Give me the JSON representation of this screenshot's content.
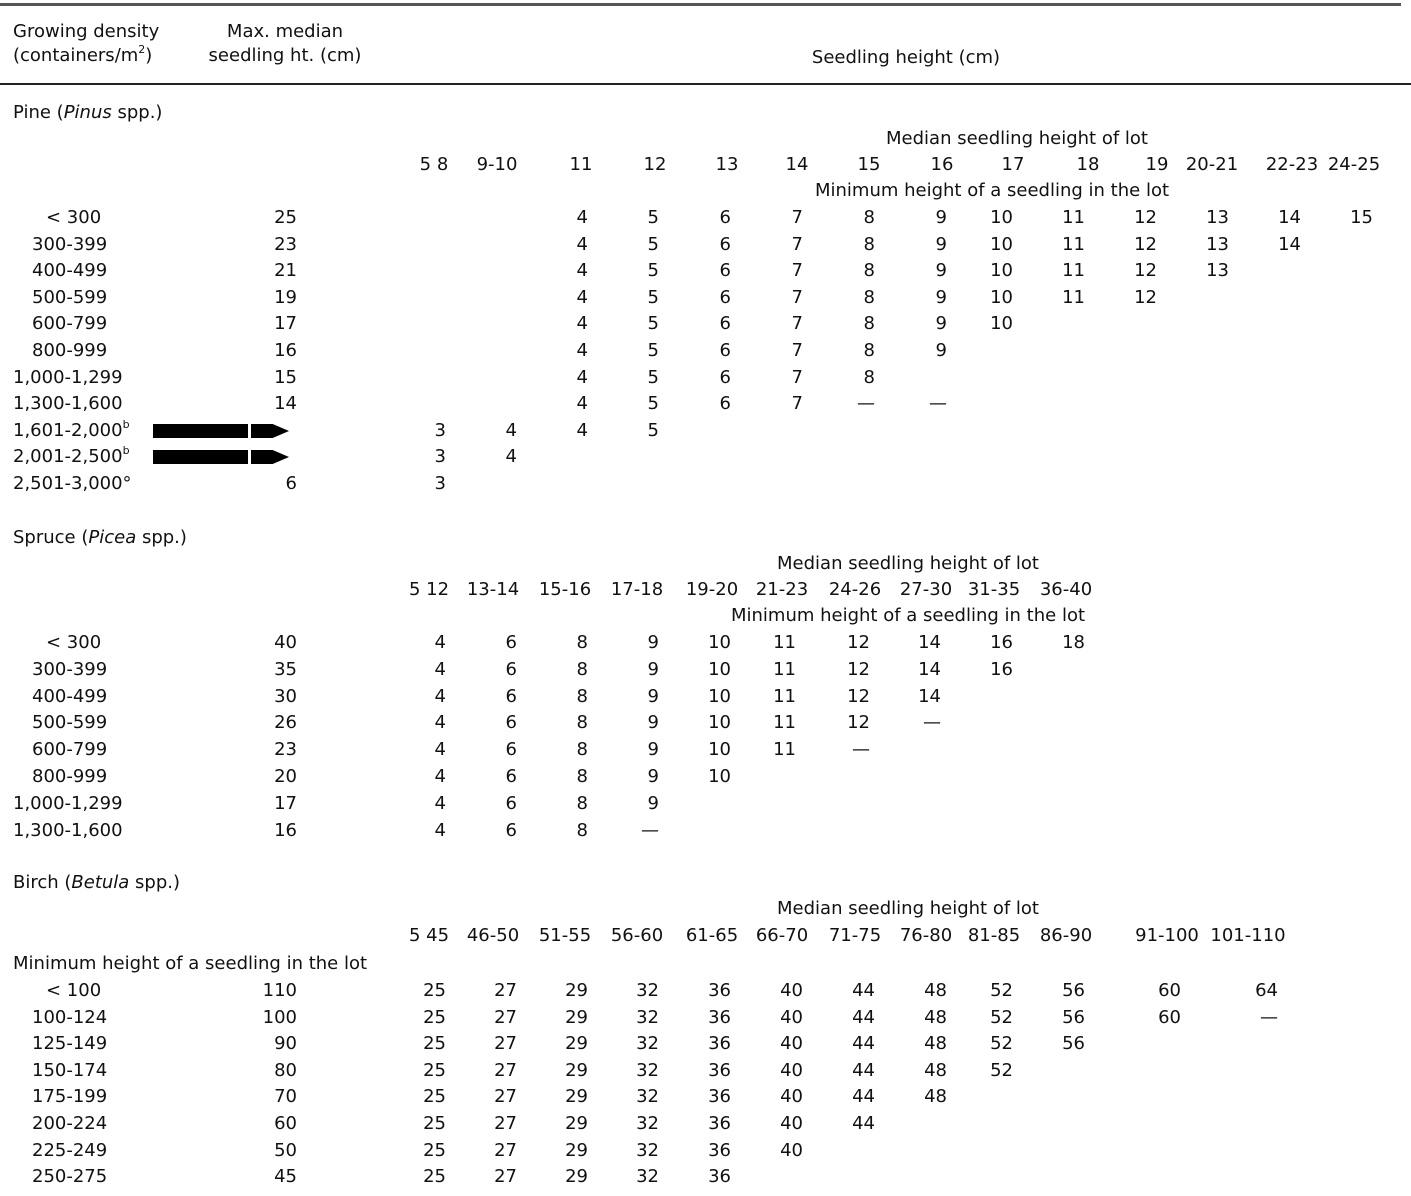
{
  "header": {
    "col1_line1": "Growing density",
    "col1_line2_pre": "(containers/m",
    "col1_line2_sup": "2",
    "col1_line2_post": ")",
    "col2_line1": "Max. median",
    "col2_line2": "seedling ht. (cm)",
    "col3": "Seedling height (cm)"
  },
  "pine": {
    "title_pre": "Pine (",
    "title_genus": "Pinus",
    "title_post": " spp.)",
    "median_label": "Median seedling height of lot",
    "min_label": "Minimum height of a seedling in the lot",
    "cols": [
      "5 8",
      "9-10",
      "11",
      "12",
      "13",
      "14",
      "15",
      "16",
      "17",
      "18",
      "19",
      "20-21",
      "22-23",
      "24-25"
    ],
    "rows": [
      {
        "density": "< 300",
        "max": "25",
        "vals": [
          "",
          "",
          "4",
          "5",
          "6",
          "7",
          "8",
          "9",
          "10",
          "11",
          "12",
          "13",
          "14",
          "15"
        ]
      },
      {
        "density": "300-399",
        "max": "23",
        "vals": [
          "",
          "",
          "4",
          "5",
          "6",
          "7",
          "8",
          "9",
          "10",
          "11",
          "12",
          "13",
          "14",
          ""
        ]
      },
      {
        "density": "400-499",
        "max": "21",
        "vals": [
          "",
          "",
          "4",
          "5",
          "6",
          "7",
          "8",
          "9",
          "10",
          "11",
          "12",
          "13",
          "",
          ""
        ]
      },
      {
        "density": "500-599",
        "max": "19",
        "vals": [
          "",
          "",
          "4",
          "5",
          "6",
          "7",
          "8",
          "9",
          "10",
          "11",
          "12",
          "",
          "",
          ""
        ]
      },
      {
        "density": "600-799",
        "max": "17",
        "vals": [
          "",
          "",
          "4",
          "5",
          "6",
          "7",
          "8",
          "9",
          "10",
          "",
          "",
          "",
          "",
          ""
        ]
      },
      {
        "density": "800-999",
        "max": "16",
        "vals": [
          "",
          "",
          "4",
          "5",
          "6",
          "7",
          "8",
          "9",
          "",
          "",
          "",
          "",
          "",
          ""
        ]
      },
      {
        "density": "1,000-1,299",
        "max": "15",
        "vals": [
          "",
          "",
          "4",
          "5",
          "6",
          "7",
          "8",
          "",
          "",
          "",
          "",
          "",
          "",
          ""
        ]
      },
      {
        "density": "1,300-1,600",
        "max": "14",
        "vals": [
          "",
          "",
          "4",
          "5",
          "6",
          "7",
          "—",
          "—",
          "",
          "",
          "",
          "",
          "",
          ""
        ]
      },
      {
        "density": "1,601-2,000",
        "sup": "b",
        "max": "",
        "vals": [
          "3",
          "4",
          "4",
          "5",
          "",
          "",
          "",
          "",
          "",
          "",
          "",
          "",
          "",
          ""
        ]
      },
      {
        "density": "2,001-2,500",
        "sup": "b",
        "max": "",
        "vals": [
          "3",
          "4",
          "",
          "",
          "",
          "",
          "",
          "",
          "",
          "",
          "",
          "",
          "",
          ""
        ]
      },
      {
        "density": "2,501-3,000°",
        "max": "6",
        "vals": [
          "3",
          "",
          "",
          "",
          "",
          "",
          "",
          "",
          "",
          "",
          "",
          "",
          "",
          ""
        ]
      }
    ]
  },
  "spruce": {
    "title_pre": "Spruce (",
    "title_genus": "Picea",
    "title_post": " spp.)",
    "median_label": "Median seedling height of lot",
    "min_label": "Minimum height of a seedling in the lot",
    "cols": [
      "5 12",
      "13-14",
      "15-16",
      "17-18",
      "19-20",
      "21-23",
      "24-26",
      "27-30",
      "31-35",
      "36-40"
    ],
    "rows": [
      {
        "density": "< 300",
        "max": "40",
        "vals": [
          "4",
          "6",
          "8",
          "9",
          "10",
          "11",
          "12",
          "14",
          "16",
          "18"
        ]
      },
      {
        "density": "300-399",
        "max": "35",
        "vals": [
          "4",
          "6",
          "8",
          "9",
          "10",
          "11",
          "12",
          "14",
          "16",
          ""
        ]
      },
      {
        "density": "400-499",
        "max": "30",
        "vals": [
          "4",
          "6",
          "8",
          "9",
          "10",
          "11",
          "12",
          "14",
          "",
          ""
        ]
      },
      {
        "density": "500-599",
        "max": "26",
        "vals": [
          "4",
          "6",
          "8",
          "9",
          "10",
          "11",
          "12",
          "—",
          "",
          ""
        ]
      },
      {
        "density": "600-799",
        "max": "23",
        "vals": [
          "4",
          "6",
          "8",
          "9",
          "10",
          "11",
          "—",
          "",
          "",
          ""
        ]
      },
      {
        "density": "800-999",
        "max": "20",
        "vals": [
          "4",
          "6",
          "8",
          "9",
          "10",
          "",
          "",
          "",
          "",
          ""
        ]
      },
      {
        "density": "1,000-1,299",
        "max": "17",
        "vals": [
          "4",
          "6",
          "8",
          "9",
          "",
          "",
          "",
          "",
          "",
          ""
        ]
      },
      {
        "density": "1,300-1,600",
        "max": "16",
        "vals": [
          "4",
          "6",
          "8",
          "—",
          "",
          "",
          "",
          "",
          "",
          ""
        ]
      }
    ]
  },
  "birch": {
    "title_pre": "Birch (",
    "title_genus": "Betula",
    "title_post": " spp.)",
    "median_label": "Median seedling height of lot",
    "min_label": "Minimum height of a seedling in the lot",
    "cols": [
      "5 45",
      "46-50",
      "51-55",
      "56-60",
      "61-65",
      "66-70",
      "71-75",
      "76-80",
      "81-85",
      "86-90",
      "91-100",
      "101-110"
    ],
    "rows": [
      {
        "density": "< 100",
        "max": "110",
        "vals": [
          "25",
          "27",
          "29",
          "32",
          "36",
          "40",
          "44",
          "48",
          "52",
          "56",
          "60",
          "64"
        ]
      },
      {
        "density": "100-124",
        "max": "100",
        "vals": [
          "25",
          "27",
          "29",
          "32",
          "36",
          "40",
          "44",
          "48",
          "52",
          "56",
          "60",
          "—"
        ]
      },
      {
        "density": "125-149",
        "max": "90",
        "vals": [
          "25",
          "27",
          "29",
          "32",
          "36",
          "40",
          "44",
          "48",
          "52",
          "56",
          "",
          ""
        ]
      },
      {
        "density": "150-174",
        "max": "80",
        "vals": [
          "25",
          "27",
          "29",
          "32",
          "36",
          "40",
          "44",
          "48",
          "52",
          "",
          "",
          ""
        ]
      },
      {
        "density": "175-199",
        "max": "70",
        "vals": [
          "25",
          "27",
          "29",
          "32",
          "36",
          "40",
          "44",
          "48",
          "",
          "",
          "",
          ""
        ]
      },
      {
        "density": "200-224",
        "max": "60",
        "vals": [
          "25",
          "27",
          "29",
          "32",
          "36",
          "40",
          "44",
          "",
          "",
          "",
          "",
          ""
        ]
      },
      {
        "density": "225-249",
        "max": "50",
        "vals": [
          "25",
          "27",
          "29",
          "32",
          "36",
          "40",
          "",
          "",
          "",
          "",
          "",
          ""
        ]
      },
      {
        "density": "250-275",
        "max": "45",
        "vals": [
          "25",
          "27",
          "29",
          "32",
          "36",
          "",
          "",
          "",
          "",
          "",
          "",
          ""
        ]
      }
    ]
  }
}
